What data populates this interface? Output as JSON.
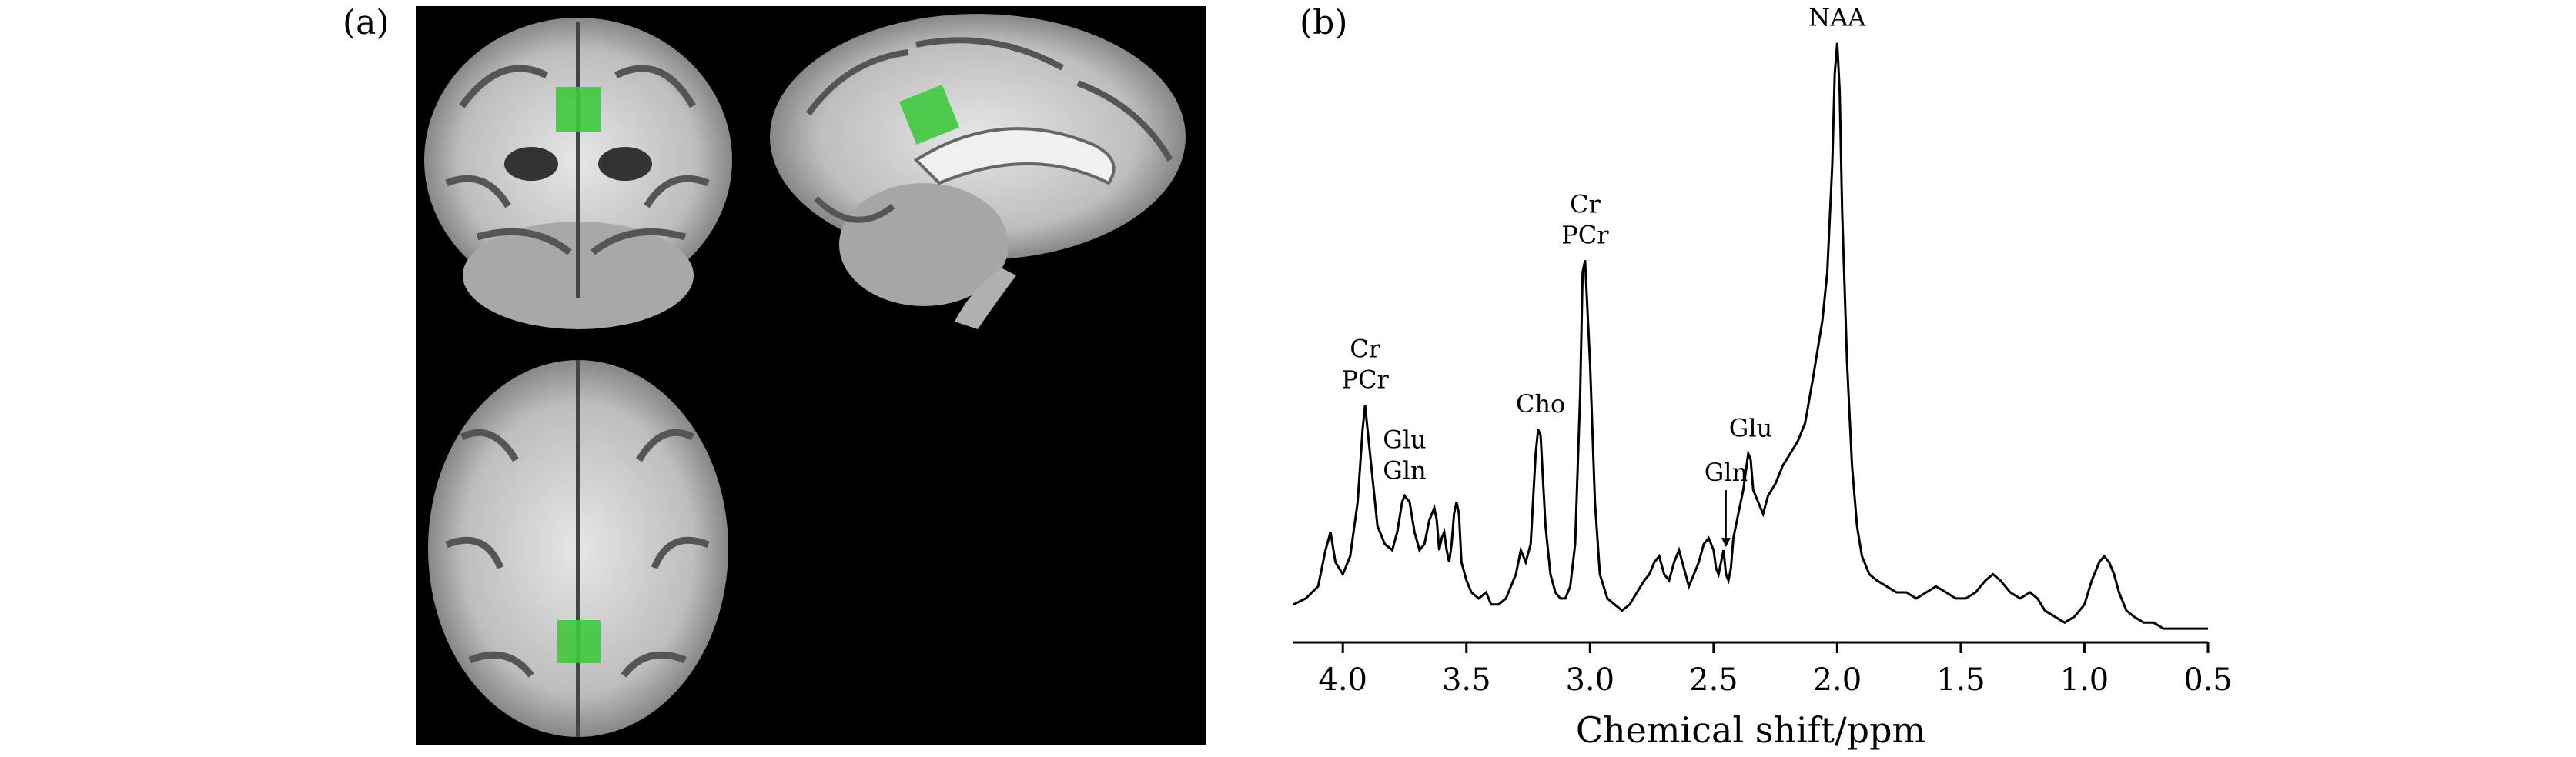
{
  "panels": {
    "a_label": "(a)",
    "b_label": "(b)"
  },
  "brain_images": {
    "views": [
      "coronal",
      "sagittal",
      "axial"
    ],
    "roi_color": "#3ec93e"
  },
  "chart_data": {
    "type": "line",
    "title": "",
    "xlabel": "Chemical shift/ppm",
    "ylabel": "",
    "xlim": [
      4.2,
      0.5
    ],
    "x_reversed": true,
    "xticks": [
      4.0,
      3.5,
      3.0,
      2.5,
      2.0,
      1.5,
      1.0,
      0.5
    ],
    "xtick_labels": [
      "4.0",
      "3.5",
      "3.0",
      "2.5",
      "2.0",
      "1.5",
      "1.0",
      "0.5"
    ],
    "ylim": [
      0,
      1.0
    ],
    "grid": false,
    "series": [
      {
        "x": [
          4.2,
          4.15,
          4.1,
          4.07,
          4.05,
          4.03,
          4.0,
          3.97,
          3.94,
          3.92,
          3.91,
          3.89,
          3.86,
          3.83,
          3.8,
          3.78,
          3.76,
          3.75,
          3.73,
          3.71,
          3.69,
          3.67,
          3.65,
          3.63,
          3.62,
          3.61,
          3.6,
          3.59,
          3.58,
          3.57,
          3.56,
          3.55,
          3.54,
          3.53,
          3.52,
          3.5,
          3.48,
          3.45,
          3.42,
          3.4,
          3.37,
          3.34,
          3.3,
          3.28,
          3.26,
          3.24,
          3.22,
          3.21,
          3.2,
          3.18,
          3.16,
          3.14,
          3.12,
          3.1,
          3.08,
          3.06,
          3.04,
          3.03,
          3.02,
          3.0,
          2.98,
          2.96,
          2.93,
          2.9,
          2.87,
          2.84,
          2.81,
          2.78,
          2.76,
          2.74,
          2.72,
          2.7,
          2.68,
          2.66,
          2.64,
          2.62,
          2.6,
          2.58,
          2.56,
          2.54,
          2.52,
          2.5,
          2.49,
          2.48,
          2.47,
          2.46,
          2.45,
          2.44,
          2.43,
          2.42,
          2.4,
          2.38,
          2.37,
          2.36,
          2.35,
          2.34,
          2.32,
          2.3,
          2.28,
          2.25,
          2.22,
          2.19,
          2.16,
          2.13,
          2.1,
          2.08,
          2.06,
          2.04,
          2.02,
          2.01,
          2.0,
          1.99,
          1.98,
          1.96,
          1.94,
          1.92,
          1.9,
          1.87,
          1.84,
          1.8,
          1.76,
          1.72,
          1.68,
          1.64,
          1.6,
          1.56,
          1.52,
          1.48,
          1.44,
          1.4,
          1.37,
          1.34,
          1.3,
          1.26,
          1.22,
          1.19,
          1.16,
          1.12,
          1.08,
          1.04,
          1.0,
          0.97,
          0.94,
          0.92,
          0.9,
          0.88,
          0.86,
          0.83,
          0.8,
          0.76,
          0.72,
          0.68,
          0.64,
          0.6,
          0.55,
          0.5
        ],
        "y": [
          0.05,
          0.06,
          0.08,
          0.14,
          0.17,
          0.12,
          0.1,
          0.13,
          0.22,
          0.34,
          0.38,
          0.3,
          0.18,
          0.15,
          0.14,
          0.17,
          0.22,
          0.23,
          0.22,
          0.17,
          0.14,
          0.15,
          0.19,
          0.21,
          0.19,
          0.14,
          0.16,
          0.17,
          0.14,
          0.12,
          0.15,
          0.2,
          0.22,
          0.2,
          0.12,
          0.09,
          0.07,
          0.06,
          0.07,
          0.05,
          0.05,
          0.06,
          0.1,
          0.14,
          0.12,
          0.15,
          0.3,
          0.34,
          0.33,
          0.18,
          0.1,
          0.07,
          0.06,
          0.06,
          0.08,
          0.15,
          0.4,
          0.6,
          0.62,
          0.45,
          0.22,
          0.1,
          0.06,
          0.05,
          0.04,
          0.05,
          0.07,
          0.09,
          0.1,
          0.12,
          0.13,
          0.1,
          0.09,
          0.12,
          0.14,
          0.11,
          0.08,
          0.1,
          0.12,
          0.15,
          0.16,
          0.14,
          0.11,
          0.1,
          0.12,
          0.14,
          0.1,
          0.09,
          0.11,
          0.16,
          0.2,
          0.24,
          0.27,
          0.3,
          0.29,
          0.24,
          0.22,
          0.2,
          0.23,
          0.25,
          0.28,
          0.3,
          0.32,
          0.35,
          0.42,
          0.47,
          0.52,
          0.6,
          0.78,
          0.93,
          0.98,
          0.9,
          0.7,
          0.45,
          0.28,
          0.18,
          0.13,
          0.1,
          0.09,
          0.08,
          0.07,
          0.07,
          0.06,
          0.07,
          0.08,
          0.07,
          0.06,
          0.06,
          0.07,
          0.09,
          0.1,
          0.09,
          0.07,
          0.06,
          0.07,
          0.06,
          0.04,
          0.03,
          0.02,
          0.03,
          0.05,
          0.09,
          0.12,
          0.13,
          0.12,
          0.1,
          0.07,
          0.04,
          0.03,
          0.02,
          0.02,
          0.01,
          0.01,
          0.01,
          0.01,
          0.01
        ]
      }
    ],
    "annotations": [
      {
        "lines": [
          "Cr",
          "PCr"
        ],
        "x": 3.91,
        "y": 0.38
      },
      {
        "lines": [
          "Glu",
          "Gln"
        ],
        "x": 3.75,
        "y": 0.23
      },
      {
        "lines": [
          "Cho"
        ],
        "x": 3.2,
        "y": 0.34
      },
      {
        "lines": [
          "Cr",
          "PCr"
        ],
        "x": 3.02,
        "y": 0.62
      },
      {
        "lines": [
          "Gln"
        ],
        "x": 2.45,
        "y": 0.14,
        "arrow": true
      },
      {
        "lines": [
          "Glu"
        ],
        "x": 2.35,
        "y": 0.3
      },
      {
        "lines": [
          "NAA"
        ],
        "x": 2.0,
        "y": 0.98
      }
    ]
  }
}
